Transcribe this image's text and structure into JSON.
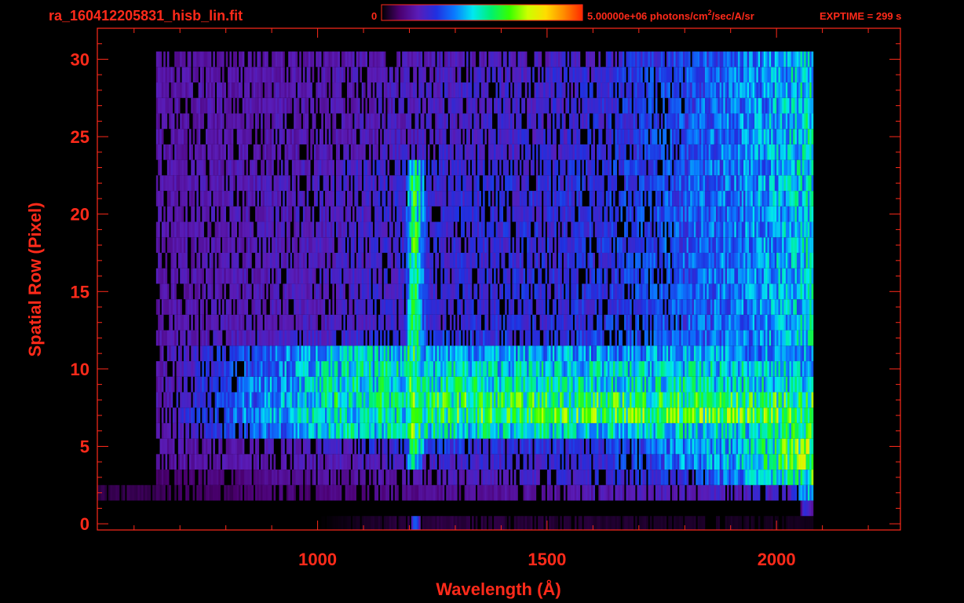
{
  "header": {
    "file_title": "ra_160412205831_hisb_lin.fit",
    "colorbar_min": "0",
    "colorbar_max": "5.00000e+06 photons/cm",
    "colorbar_max_sup": "2",
    "colorbar_max_tail": "/sec/A/sr",
    "exptime": "EXPTIME = 299 s"
  },
  "colors": {
    "axis": "#ff2a1a",
    "background": "#000000",
    "colormap": [
      "#000000",
      "#4b0070",
      "#5a1cb8",
      "#2030e0",
      "#0a7aff",
      "#00e8f0",
      "#00f070",
      "#36ff00",
      "#ccff00",
      "#ffdc00",
      "#ff8a00",
      "#ff2800"
    ]
  },
  "chart_data": {
    "type": "heatmap",
    "title": "ra_160412205831_hisb_lin.fit",
    "xlabel": "Wavelength (Å)",
    "ylabel": "Spatial Row (Pixel)",
    "xlim": [
      520,
      2270
    ],
    "ylim": [
      -0.4,
      32
    ],
    "xticks": [
      1000,
      1500,
      2000
    ],
    "xtick_labels": [
      "1000",
      "1500",
      "2000"
    ],
    "yticks": [
      0,
      5,
      10,
      15,
      20,
      25,
      30
    ],
    "ytick_labels": [
      "0",
      "5",
      "10",
      "15",
      "20",
      "25",
      "30"
    ],
    "colorbar": {
      "min": 0,
      "max": 5000000,
      "units": "photons/cm²/sec/A/sr"
    },
    "intensity_scale": "lin",
    "grid": false,
    "rows": [
      {
        "row": 0,
        "profile": [
          [
            0,
            0
          ],
          [
            1000,
            0
          ],
          [
            1200,
            0.05
          ],
          [
            1210,
            0.35
          ],
          [
            1230,
            0.05
          ],
          [
            2080,
            0.02
          ]
        ]
      },
      {
        "row": 1,
        "profile": [
          [
            0,
            0
          ],
          [
            2050,
            0
          ],
          [
            2060,
            0.25
          ],
          [
            2080,
            0.1
          ]
        ]
      },
      {
        "row": 2,
        "profile": [
          [
            0,
            0
          ],
          [
            2030,
            0.2
          ],
          [
            2080,
            0.45
          ]
        ]
      },
      {
        "row": 3,
        "profile": [
          [
            650,
            0.08
          ],
          [
            900,
            0.12
          ],
          [
            1200,
            0.16
          ],
          [
            1500,
            0.2
          ],
          [
            1800,
            0.25
          ],
          [
            1950,
            0.4
          ],
          [
            2080,
            0.55
          ]
        ]
      },
      {
        "row": 4,
        "profile": [
          [
            650,
            0.14
          ],
          [
            1000,
            0.16
          ],
          [
            1190,
            0.2
          ],
          [
            1210,
            0.55
          ],
          [
            1230,
            0.2
          ],
          [
            1600,
            0.22
          ],
          [
            1950,
            0.45
          ],
          [
            2080,
            0.65
          ]
        ]
      },
      {
        "row": 5,
        "profile": [
          [
            650,
            0.14
          ],
          [
            1000,
            0.18
          ],
          [
            1190,
            0.25
          ],
          [
            1210,
            0.62
          ],
          [
            1240,
            0.25
          ],
          [
            1600,
            0.24
          ],
          [
            1950,
            0.45
          ],
          [
            2080,
            0.65
          ]
        ]
      },
      {
        "row": 6,
        "profile": [
          [
            650,
            0.14
          ],
          [
            1040,
            0.45
          ],
          [
            1190,
            0.46
          ],
          [
            1210,
            0.62
          ],
          [
            1230,
            0.48
          ],
          [
            1600,
            0.45
          ],
          [
            1950,
            0.46
          ],
          [
            2080,
            0.55
          ]
        ]
      },
      {
        "row": 7,
        "profile": [
          [
            650,
            0.15
          ],
          [
            950,
            0.46
          ],
          [
            1190,
            0.48
          ],
          [
            1210,
            0.62
          ],
          [
            1230,
            0.55
          ],
          [
            1600,
            0.58
          ],
          [
            1950,
            0.6
          ],
          [
            2080,
            0.62
          ]
        ]
      },
      {
        "row": 8,
        "profile": [
          [
            650,
            0.15
          ],
          [
            940,
            0.42
          ],
          [
            1040,
            0.5
          ],
          [
            1190,
            0.52
          ],
          [
            1210,
            0.62
          ],
          [
            1230,
            0.55
          ],
          [
            1600,
            0.55
          ],
          [
            1950,
            0.55
          ],
          [
            2080,
            0.55
          ]
        ]
      },
      {
        "row": 9,
        "profile": [
          [
            650,
            0.15
          ],
          [
            960,
            0.42
          ],
          [
            1040,
            0.46
          ],
          [
            1190,
            0.48
          ],
          [
            1210,
            0.62
          ],
          [
            1230,
            0.5
          ],
          [
            1600,
            0.48
          ],
          [
            1950,
            0.46
          ],
          [
            2080,
            0.45
          ]
        ]
      },
      {
        "row": 10,
        "profile": [
          [
            650,
            0.15
          ],
          [
            970,
            0.4
          ],
          [
            1040,
            0.45
          ],
          [
            1190,
            0.47
          ],
          [
            1210,
            0.62
          ],
          [
            1230,
            0.46
          ],
          [
            1600,
            0.44
          ],
          [
            1950,
            0.44
          ],
          [
            2080,
            0.42
          ]
        ]
      },
      {
        "row": 11,
        "profile": [
          [
            650,
            0.15
          ],
          [
            1040,
            0.42
          ],
          [
            1190,
            0.44
          ],
          [
            1210,
            0.62
          ],
          [
            1230,
            0.4
          ],
          [
            1600,
            0.38
          ],
          [
            1950,
            0.38
          ],
          [
            2080,
            0.4
          ]
        ]
      },
      {
        "row": 12,
        "profile": [
          [
            650,
            0.15
          ],
          [
            1000,
            0.2
          ],
          [
            1190,
            0.25
          ],
          [
            1210,
            0.6
          ],
          [
            1240,
            0.25
          ],
          [
            1600,
            0.26
          ],
          [
            1950,
            0.35
          ],
          [
            2080,
            0.45
          ]
        ]
      },
      {
        "row": 13,
        "profile": [
          [
            650,
            0.15
          ],
          [
            1000,
            0.18
          ],
          [
            1190,
            0.22
          ],
          [
            1210,
            0.6
          ],
          [
            1240,
            0.22
          ],
          [
            1600,
            0.24
          ],
          [
            1950,
            0.35
          ],
          [
            2080,
            0.45
          ]
        ]
      },
      {
        "row": 14,
        "profile": [
          [
            650,
            0.15
          ],
          [
            1000,
            0.18
          ],
          [
            1190,
            0.22
          ],
          [
            1210,
            0.6
          ],
          [
            1240,
            0.22
          ],
          [
            1600,
            0.24
          ],
          [
            1950,
            0.35
          ],
          [
            2080,
            0.45
          ]
        ]
      },
      {
        "row": 15,
        "profile": [
          [
            650,
            0.15
          ],
          [
            1000,
            0.18
          ],
          [
            1190,
            0.22
          ],
          [
            1210,
            0.6
          ],
          [
            1240,
            0.22
          ],
          [
            1600,
            0.24
          ],
          [
            1950,
            0.36
          ],
          [
            2080,
            0.46
          ]
        ]
      },
      {
        "row": 16,
        "profile": [
          [
            650,
            0.15
          ],
          [
            1000,
            0.18
          ],
          [
            1190,
            0.22
          ],
          [
            1210,
            0.6
          ],
          [
            1240,
            0.22
          ],
          [
            1600,
            0.24
          ],
          [
            1950,
            0.36
          ],
          [
            2080,
            0.46
          ]
        ]
      },
      {
        "row": 17,
        "profile": [
          [
            650,
            0.15
          ],
          [
            1000,
            0.18
          ],
          [
            1190,
            0.22
          ],
          [
            1210,
            0.6
          ],
          [
            1240,
            0.22
          ],
          [
            1600,
            0.24
          ],
          [
            1950,
            0.36
          ],
          [
            2080,
            0.46
          ]
        ]
      },
      {
        "row": 18,
        "profile": [
          [
            650,
            0.15
          ],
          [
            1000,
            0.18
          ],
          [
            1190,
            0.22
          ],
          [
            1210,
            0.6
          ],
          [
            1240,
            0.22
          ],
          [
            1600,
            0.24
          ],
          [
            1950,
            0.36
          ],
          [
            2080,
            0.46
          ]
        ]
      },
      {
        "row": 19,
        "profile": [
          [
            650,
            0.15
          ],
          [
            1000,
            0.18
          ],
          [
            1190,
            0.22
          ],
          [
            1210,
            0.6
          ],
          [
            1240,
            0.22
          ],
          [
            1600,
            0.24
          ],
          [
            1950,
            0.36
          ],
          [
            2080,
            0.46
          ]
        ]
      },
      {
        "row": 20,
        "profile": [
          [
            650,
            0.15
          ],
          [
            1000,
            0.18
          ],
          [
            1190,
            0.22
          ],
          [
            1210,
            0.6
          ],
          [
            1240,
            0.22
          ],
          [
            1600,
            0.24
          ],
          [
            1950,
            0.36
          ],
          [
            2080,
            0.46
          ]
        ]
      },
      {
        "row": 21,
        "profile": [
          [
            650,
            0.15
          ],
          [
            1000,
            0.18
          ],
          [
            1190,
            0.22
          ],
          [
            1210,
            0.6
          ],
          [
            1240,
            0.22
          ],
          [
            1600,
            0.24
          ],
          [
            1950,
            0.36
          ],
          [
            2080,
            0.46
          ]
        ]
      },
      {
        "row": 22,
        "profile": [
          [
            650,
            0.15
          ],
          [
            1000,
            0.18
          ],
          [
            1190,
            0.22
          ],
          [
            1210,
            0.58
          ],
          [
            1240,
            0.22
          ],
          [
            1600,
            0.24
          ],
          [
            1950,
            0.36
          ],
          [
            2080,
            0.46
          ]
        ]
      },
      {
        "row": 23,
        "profile": [
          [
            650,
            0.15
          ],
          [
            1000,
            0.18
          ],
          [
            1190,
            0.22
          ],
          [
            1210,
            0.55
          ],
          [
            1240,
            0.22
          ],
          [
            1600,
            0.24
          ],
          [
            1950,
            0.36
          ],
          [
            2080,
            0.46
          ]
        ]
      },
      {
        "row": 24,
        "profile": [
          [
            650,
            0.15
          ],
          [
            1000,
            0.16
          ],
          [
            1190,
            0.2
          ],
          [
            1210,
            0.2
          ],
          [
            1240,
            0.2
          ],
          [
            1600,
            0.22
          ],
          [
            1950,
            0.36
          ],
          [
            2080,
            0.46
          ]
        ]
      },
      {
        "row": 25,
        "profile": [
          [
            650,
            0.15
          ],
          [
            1000,
            0.16
          ],
          [
            1600,
            0.22
          ],
          [
            1950,
            0.36
          ],
          [
            2080,
            0.46
          ]
        ]
      },
      {
        "row": 26,
        "profile": [
          [
            650,
            0.15
          ],
          [
            1000,
            0.16
          ],
          [
            1600,
            0.22
          ],
          [
            1950,
            0.36
          ],
          [
            2080,
            0.46
          ]
        ]
      },
      {
        "row": 27,
        "profile": [
          [
            650,
            0.15
          ],
          [
            1000,
            0.16
          ],
          [
            1600,
            0.22
          ],
          [
            1950,
            0.36
          ],
          [
            2080,
            0.46
          ]
        ]
      },
      {
        "row": 28,
        "profile": [
          [
            650,
            0.15
          ],
          [
            1000,
            0.16
          ],
          [
            1600,
            0.22
          ],
          [
            1950,
            0.36
          ],
          [
            2080,
            0.46
          ]
        ]
      },
      {
        "row": 29,
        "profile": [
          [
            650,
            0.15
          ],
          [
            1000,
            0.16
          ],
          [
            1600,
            0.22
          ],
          [
            1950,
            0.36
          ],
          [
            2080,
            0.46
          ]
        ]
      },
      {
        "row": 30,
        "profile": [
          [
            650,
            0.14
          ],
          [
            1000,
            0.15
          ],
          [
            1600,
            0.2
          ],
          [
            1950,
            0.34
          ],
          [
            2080,
            0.42
          ]
        ]
      }
    ]
  }
}
